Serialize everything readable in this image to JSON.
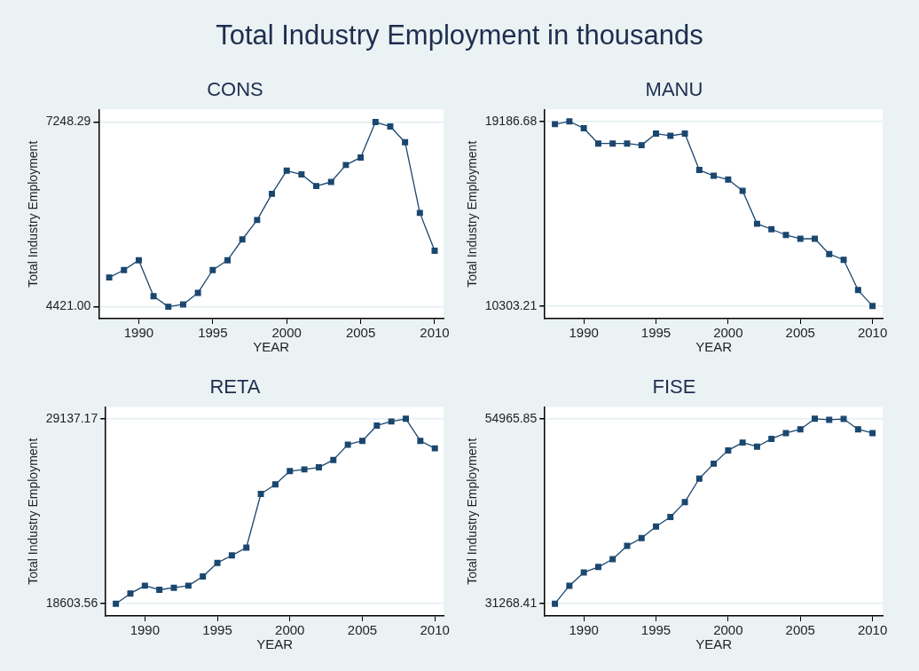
{
  "chart_data": [
    {
      "type": "line",
      "title": "CONS",
      "annotations": [
        "Total Industry Employment in thousands"
      ],
      "xlabel": "YEAR",
      "ylabel": "Total Industry Employment",
      "marker": "square",
      "grid": "y",
      "legend": false,
      "xlim": [
        1987.3,
        2010.6
      ],
      "xticks": [
        1990,
        1995,
        2000,
        2005,
        2010
      ],
      "ylim": [
        4239,
        7441
      ],
      "yticks": [
        {
          "value": 4421,
          "label": "4421.00"
        },
        {
          "value": 7248.29,
          "label": "7248.29"
        }
      ],
      "x": [
        1988,
        1989,
        1990,
        1991,
        1992,
        1993,
        1994,
        1995,
        1996,
        1997,
        1998,
        1999,
        2000,
        2001,
        2002,
        2003,
        2004,
        2005,
        2006,
        2007,
        2008,
        2009,
        2010
      ],
      "series": [
        {
          "color": "#1a476f",
          "values": [
            4869,
            4983,
            5134,
            4582,
            4421,
            4457,
            4634,
            4983,
            5134,
            5452,
            5749,
            6150,
            6504,
            6447,
            6269,
            6332,
            6592,
            6707,
            7248.29,
            7181,
            6941,
            5858,
            5280
          ]
        }
      ]
    },
    {
      "type": "line",
      "title": "MANU",
      "xlabel": "YEAR",
      "ylabel": "Total Industry Employment",
      "marker": "square",
      "grid": "y",
      "legend": false,
      "xlim": [
        1987.3,
        2010.7
      ],
      "xticks": [
        1990,
        1995,
        2000,
        2005,
        2010
      ],
      "ylim": [
        9698,
        19759
      ],
      "yticks": [
        {
          "value": 10303.21,
          "label": "10303.21"
        },
        {
          "value": 19186.68,
          "label": "19186.68"
        }
      ],
      "x": [
        1988,
        1989,
        1990,
        1991,
        1992,
        1993,
        1994,
        1995,
        1996,
        1997,
        1998,
        1999,
        2000,
        2001,
        2002,
        2003,
        2004,
        2005,
        2006,
        2007,
        2008,
        2009,
        2010
      ],
      "series": [
        {
          "color": "#1a476f",
          "values": [
            19056,
            19186.68,
            18859,
            18123,
            18123,
            18123,
            18041,
            18598,
            18499,
            18598,
            16847,
            16569,
            16389,
            15849,
            14262,
            14000,
            13722,
            13542,
            13542,
            12806,
            12528,
            11072,
            10303.21
          ]
        }
      ]
    },
    {
      "type": "line",
      "title": "RETA",
      "xlabel": "YEAR",
      "ylabel": "Total Industry Employment",
      "marker": "square",
      "grid": "y",
      "legend": false,
      "xlim": [
        1987.3,
        2010.6
      ],
      "xticks": [
        1990,
        1995,
        2000,
        2005,
        2010
      ],
      "ylim": [
        17906,
        29815
      ],
      "yticks": [
        {
          "value": 18603.56,
          "label": "18603.56"
        },
        {
          "value": 29137.17,
          "label": "29137.17"
        }
      ],
      "x": [
        1988,
        1989,
        1990,
        1991,
        1992,
        1993,
        1994,
        1995,
        1996,
        1997,
        1998,
        1999,
        2000,
        2001,
        2002,
        2003,
        2004,
        2005,
        2006,
        2007,
        2008,
        2009,
        2010
      ],
      "series": [
        {
          "color": "#1a476f",
          "values": [
            18603.56,
            19185,
            19630,
            19398,
            19514,
            19630,
            20153,
            20927,
            21353,
            21799,
            24858,
            25400,
            26156,
            26252,
            26368,
            26794,
            27666,
            27878,
            28750,
            28982,
            29137.17,
            27878,
            27453
          ]
        }
      ]
    },
    {
      "type": "line",
      "title": "FISE",
      "xlabel": "YEAR",
      "ylabel": "Total Industry Employment",
      "marker": "square",
      "grid": "y",
      "legend": false,
      "xlim": [
        1987.3,
        2010.7
      ],
      "xticks": [
        1990,
        1995,
        2000,
        2005,
        2010
      ],
      "ylim": [
        29700,
        56491
      ],
      "yticks": [
        {
          "value": 31268.41,
          "label": "31268.41"
        },
        {
          "value": 54965.85,
          "label": "54965.85"
        }
      ],
      "x": [
        1988,
        1989,
        1990,
        1991,
        1992,
        1993,
        1994,
        1995,
        1996,
        1997,
        1998,
        1999,
        2000,
        2001,
        2002,
        2003,
        2004,
        2005,
        2006,
        2007,
        2008,
        2009,
        2010
      ],
      "series": [
        {
          "color": "#1a476f",
          "values": [
            31268.41,
            33577,
            35276,
            35972,
            36974,
            38673,
            39675,
            41156,
            42376,
            44292,
            47298,
            49215,
            50914,
            51915,
            51393,
            52395,
            53135,
            53614,
            54965.85,
            54834,
            54940,
            53614,
            53135
          ]
        }
      ]
    }
  ]
}
